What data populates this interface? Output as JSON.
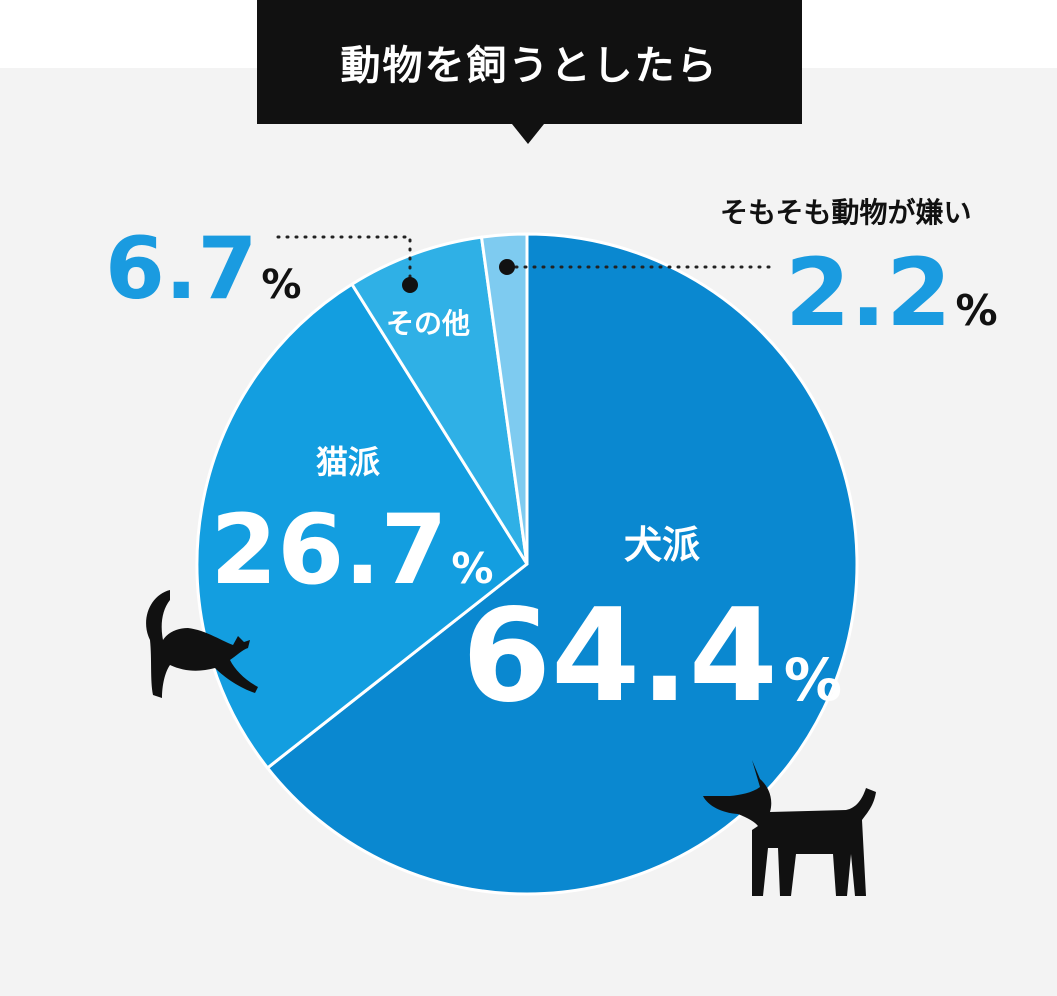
{
  "title": "動物を飼うとしたら",
  "colors": {
    "dog": "#0a88d0",
    "cat": "#139ee0",
    "other": "#2fb0e6",
    "dislike": "#7ecbf0",
    "accent_text": "#1a9be0",
    "dark": "#111111",
    "background": "#f3f3f3"
  },
  "chart_data": {
    "type": "pie",
    "title": "動物を飼うとしたら",
    "start_angle_deg": 0,
    "direction": "clockwise",
    "slices": [
      {
        "label": "犬派",
        "value": 64.4,
        "value_text": "64.4",
        "unit": "%",
        "color": "#0a88d0"
      },
      {
        "label": "猫派",
        "value": 26.7,
        "value_text": "26.7",
        "unit": "%",
        "color": "#139ee0"
      },
      {
        "label": "その他",
        "value": 6.7,
        "value_text": "6.7",
        "unit": "%",
        "color": "#2fb0e6"
      },
      {
        "label": "そもそも動物が嫌い",
        "value": 2.2,
        "value_text": "2.2",
        "unit": "%",
        "color": "#7ecbf0"
      }
    ]
  },
  "icons": [
    "cat-silhouette-icon",
    "dog-silhouette-icon"
  ]
}
